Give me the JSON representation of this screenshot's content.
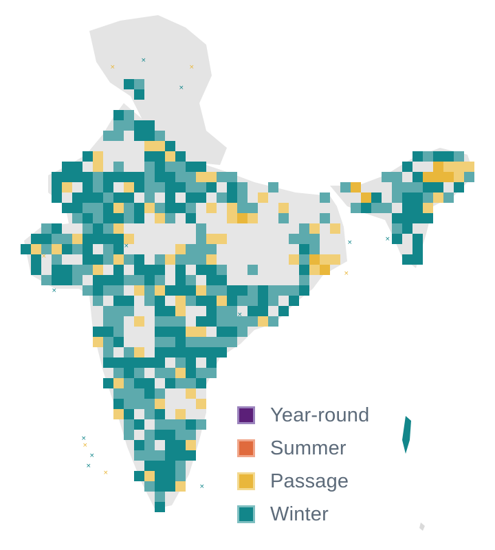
{
  "legend": {
    "items": [
      {
        "label": "Year-round",
        "fill": "#5b1f78",
        "stroke": "#9b83bd"
      },
      {
        "label": "Summer",
        "fill": "#e06a3d",
        "stroke": "#f0a68a"
      },
      {
        "label": "Passage",
        "fill": "#e9b73b",
        "stroke": "#f3d98f"
      },
      {
        "label": "Winter",
        "fill": "#12868a",
        "stroke": "#7fbfc1"
      }
    ]
  },
  "colors": {
    "land": "#e4e4e4",
    "land_dark": "#d6d6d6",
    "winter": "#12868a",
    "winter_light": "#5daaad",
    "passage": "#e9b73b",
    "passage_light": "#f1cf77"
  }
}
